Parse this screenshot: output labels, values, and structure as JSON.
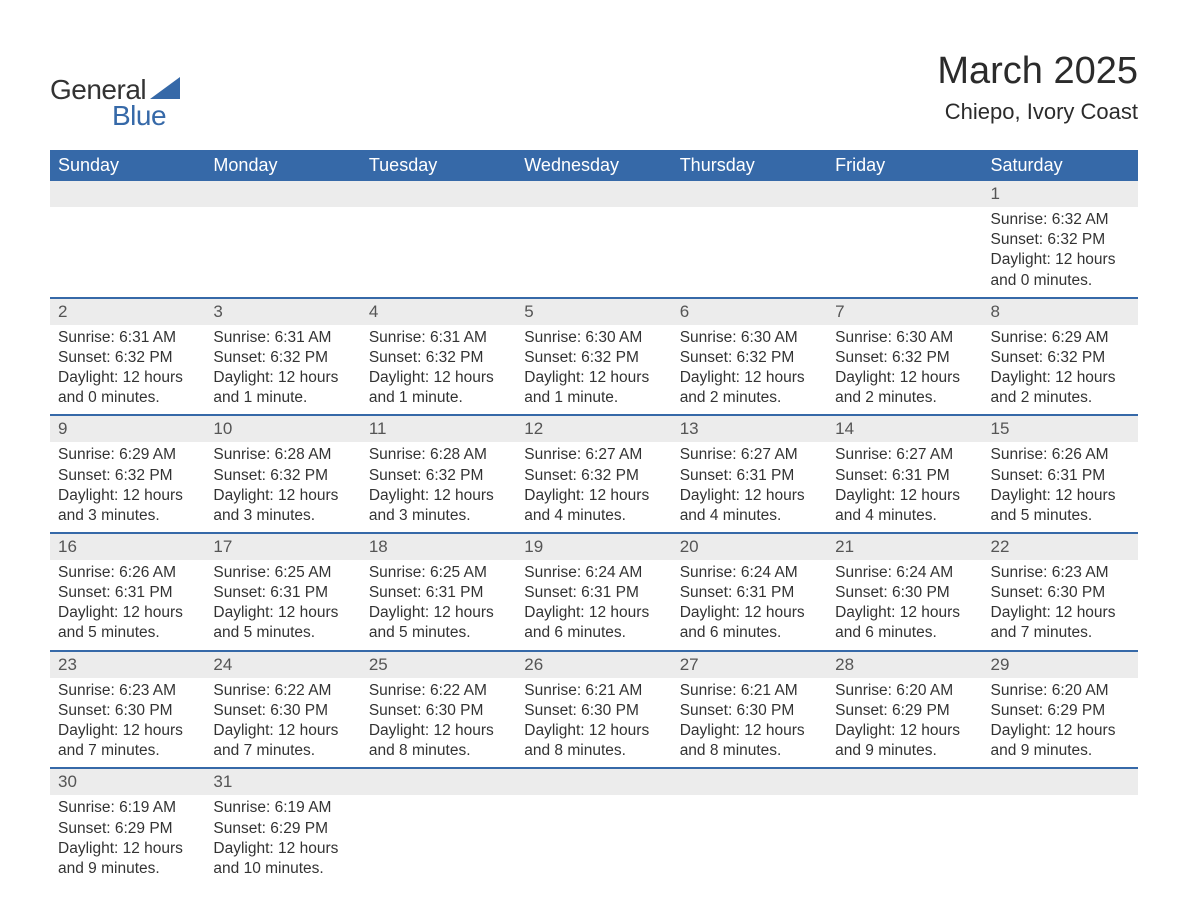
{
  "logo": {
    "word1": "General",
    "word2": "Blue",
    "sail_color": "#3669a8"
  },
  "title": "March 2025",
  "location": "Chiepo, Ivory Coast",
  "colors": {
    "header_bg": "#3669a8",
    "header_text": "#ffffff",
    "daynum_bg": "#ececec",
    "daynum_text": "#555555",
    "body_text": "#333333",
    "rule": "#3669a8",
    "page_bg": "#ffffff"
  },
  "typography": {
    "title_fontsize": 38,
    "location_fontsize": 22,
    "header_fontsize": 18,
    "daynum_fontsize": 17,
    "cell_fontsize": 15.5,
    "logo_fontsize": 28
  },
  "weekdays": [
    "Sunday",
    "Monday",
    "Tuesday",
    "Wednesday",
    "Thursday",
    "Friday",
    "Saturday"
  ],
  "weeks": [
    [
      null,
      null,
      null,
      null,
      null,
      null,
      {
        "n": "1",
        "sunrise": "6:32 AM",
        "sunset": "6:32 PM",
        "daylight": "12 hours and 0 minutes."
      }
    ],
    [
      {
        "n": "2",
        "sunrise": "6:31 AM",
        "sunset": "6:32 PM",
        "daylight": "12 hours and 0 minutes."
      },
      {
        "n": "3",
        "sunrise": "6:31 AM",
        "sunset": "6:32 PM",
        "daylight": "12 hours and 1 minute."
      },
      {
        "n": "4",
        "sunrise": "6:31 AM",
        "sunset": "6:32 PM",
        "daylight": "12 hours and 1 minute."
      },
      {
        "n": "5",
        "sunrise": "6:30 AM",
        "sunset": "6:32 PM",
        "daylight": "12 hours and 1 minute."
      },
      {
        "n": "6",
        "sunrise": "6:30 AM",
        "sunset": "6:32 PM",
        "daylight": "12 hours and 2 minutes."
      },
      {
        "n": "7",
        "sunrise": "6:30 AM",
        "sunset": "6:32 PM",
        "daylight": "12 hours and 2 minutes."
      },
      {
        "n": "8",
        "sunrise": "6:29 AM",
        "sunset": "6:32 PM",
        "daylight": "12 hours and 2 minutes."
      }
    ],
    [
      {
        "n": "9",
        "sunrise": "6:29 AM",
        "sunset": "6:32 PM",
        "daylight": "12 hours and 3 minutes."
      },
      {
        "n": "10",
        "sunrise": "6:28 AM",
        "sunset": "6:32 PM",
        "daylight": "12 hours and 3 minutes."
      },
      {
        "n": "11",
        "sunrise": "6:28 AM",
        "sunset": "6:32 PM",
        "daylight": "12 hours and 3 minutes."
      },
      {
        "n": "12",
        "sunrise": "6:27 AM",
        "sunset": "6:32 PM",
        "daylight": "12 hours and 4 minutes."
      },
      {
        "n": "13",
        "sunrise": "6:27 AM",
        "sunset": "6:31 PM",
        "daylight": "12 hours and 4 minutes."
      },
      {
        "n": "14",
        "sunrise": "6:27 AM",
        "sunset": "6:31 PM",
        "daylight": "12 hours and 4 minutes."
      },
      {
        "n": "15",
        "sunrise": "6:26 AM",
        "sunset": "6:31 PM",
        "daylight": "12 hours and 5 minutes."
      }
    ],
    [
      {
        "n": "16",
        "sunrise": "6:26 AM",
        "sunset": "6:31 PM",
        "daylight": "12 hours and 5 minutes."
      },
      {
        "n": "17",
        "sunrise": "6:25 AM",
        "sunset": "6:31 PM",
        "daylight": "12 hours and 5 minutes."
      },
      {
        "n": "18",
        "sunrise": "6:25 AM",
        "sunset": "6:31 PM",
        "daylight": "12 hours and 5 minutes."
      },
      {
        "n": "19",
        "sunrise": "6:24 AM",
        "sunset": "6:31 PM",
        "daylight": "12 hours and 6 minutes."
      },
      {
        "n": "20",
        "sunrise": "6:24 AM",
        "sunset": "6:31 PM",
        "daylight": "12 hours and 6 minutes."
      },
      {
        "n": "21",
        "sunrise": "6:24 AM",
        "sunset": "6:30 PM",
        "daylight": "12 hours and 6 minutes."
      },
      {
        "n": "22",
        "sunrise": "6:23 AM",
        "sunset": "6:30 PM",
        "daylight": "12 hours and 7 minutes."
      }
    ],
    [
      {
        "n": "23",
        "sunrise": "6:23 AM",
        "sunset": "6:30 PM",
        "daylight": "12 hours and 7 minutes."
      },
      {
        "n": "24",
        "sunrise": "6:22 AM",
        "sunset": "6:30 PM",
        "daylight": "12 hours and 7 minutes."
      },
      {
        "n": "25",
        "sunrise": "6:22 AM",
        "sunset": "6:30 PM",
        "daylight": "12 hours and 8 minutes."
      },
      {
        "n": "26",
        "sunrise": "6:21 AM",
        "sunset": "6:30 PM",
        "daylight": "12 hours and 8 minutes."
      },
      {
        "n": "27",
        "sunrise": "6:21 AM",
        "sunset": "6:30 PM",
        "daylight": "12 hours and 8 minutes."
      },
      {
        "n": "28",
        "sunrise": "6:20 AM",
        "sunset": "6:29 PM",
        "daylight": "12 hours and 9 minutes."
      },
      {
        "n": "29",
        "sunrise": "6:20 AM",
        "sunset": "6:29 PM",
        "daylight": "12 hours and 9 minutes."
      }
    ],
    [
      {
        "n": "30",
        "sunrise": "6:19 AM",
        "sunset": "6:29 PM",
        "daylight": "12 hours and 9 minutes."
      },
      {
        "n": "31",
        "sunrise": "6:19 AM",
        "sunset": "6:29 PM",
        "daylight": "12 hours and 10 minutes."
      },
      null,
      null,
      null,
      null,
      null
    ]
  ],
  "labels": {
    "sunrise": "Sunrise: ",
    "sunset": "Sunset: ",
    "daylight": "Daylight: "
  }
}
